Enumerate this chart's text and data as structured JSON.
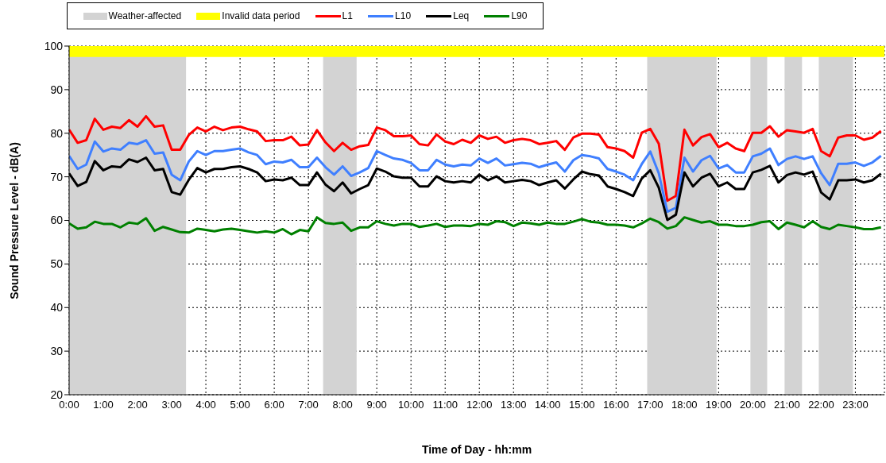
{
  "chart_data": {
    "type": "line",
    "xlabel": "Time of Day - hh:mm",
    "ylabel": "Sound Pressure Level - dB(A)",
    "x": [
      0,
      0.25,
      0.5,
      0.75,
      1,
      1.25,
      1.5,
      1.75,
      2,
      2.25,
      2.5,
      2.75,
      3,
      3.25,
      3.5,
      3.75,
      4,
      4.25,
      4.5,
      4.75,
      5,
      5.25,
      5.5,
      5.75,
      6,
      6.25,
      6.5,
      6.75,
      7,
      7.25,
      7.5,
      7.75,
      8,
      8.25,
      8.5,
      8.75,
      9,
      9.25,
      9.5,
      9.75,
      10,
      10.25,
      10.5,
      10.75,
      11,
      11.25,
      11.5,
      11.75,
      12,
      12.25,
      12.5,
      12.75,
      13,
      13.25,
      13.5,
      13.75,
      14,
      14.25,
      14.5,
      14.75,
      15,
      15.25,
      15.5,
      15.75,
      16,
      16.25,
      16.5,
      16.75,
      17,
      17.25,
      17.5,
      17.75,
      18,
      18.25,
      18.5,
      18.75,
      19,
      19.25,
      19.5,
      19.75,
      20,
      20.25,
      20.5,
      20.75,
      21,
      21.25,
      21.5,
      21.75,
      22,
      22.25,
      22.5,
      22.75,
      23,
      23.25,
      23.5,
      23.75
    ],
    "series": [
      {
        "name": "L1",
        "color": "#ff0000",
        "values": [
          80.8,
          77.8,
          78.4,
          83.3,
          80.8,
          81.5,
          81.2,
          83.0,
          81.5,
          83.9,
          81.5,
          81.8,
          76.2,
          76.2,
          79.6,
          81.3,
          80.4,
          81.5,
          80.7,
          81.3,
          81.5,
          80.9,
          80.4,
          78.2,
          78.4,
          78.4,
          79.2,
          77.2,
          77.4,
          80.7,
          77.9,
          75.9,
          77.8,
          76.2,
          77.0,
          77.3,
          81.3,
          80.7,
          79.3,
          79.3,
          79.5,
          77.5,
          77.2,
          79.7,
          78.1,
          77.5,
          78.5,
          77.8,
          79.5,
          78.7,
          79.2,
          77.8,
          78.4,
          78.7,
          78.4,
          77.5,
          77.8,
          78.2,
          76.2,
          79.0,
          79.9,
          79.9,
          79.7,
          76.8,
          76.5,
          75.9,
          74.4,
          80.1,
          81.0,
          77.6,
          64.5,
          65.6,
          80.8,
          77.2,
          79.1,
          79.8,
          76.8,
          77.8,
          76.5,
          75.9,
          80.1,
          80.1,
          81.6,
          79.2,
          80.7,
          80.4,
          80.1,
          81.0,
          75.9,
          74.7,
          79.0,
          79.5,
          79.5,
          78.5,
          79.0,
          80.5
        ]
      },
      {
        "name": "L10",
        "color": "#3f7fff",
        "values": [
          74.8,
          71.8,
          72.8,
          78.1,
          75.8,
          76.5,
          76.2,
          77.8,
          77.5,
          78.4,
          75.3,
          75.6,
          70.5,
          69.2,
          73.5,
          75.9,
          75.0,
          75.9,
          75.9,
          76.2,
          76.5,
          75.6,
          75.0,
          72.9,
          73.5,
          73.3,
          73.9,
          72.2,
          72.2,
          74.4,
          72.2,
          70.5,
          72.4,
          70.2,
          71.0,
          72.0,
          75.9,
          75.0,
          74.2,
          73.9,
          73.2,
          71.5,
          71.5,
          73.9,
          72.8,
          72.4,
          72.8,
          72.6,
          74.2,
          73.2,
          74.2,
          72.6,
          72.9,
          73.2,
          73.0,
          72.2,
          72.8,
          73.3,
          71.2,
          73.8,
          75.0,
          74.7,
          74.2,
          71.8,
          71.2,
          70.5,
          69.2,
          72.9,
          75.8,
          70.8,
          62.0,
          62.9,
          74.4,
          71.2,
          73.8,
          74.8,
          71.9,
          72.7,
          71.0,
          71.0,
          74.7,
          75.3,
          76.5,
          72.7,
          74.1,
          74.7,
          74.1,
          74.7,
          70.8,
          68.1,
          73.0,
          73.0,
          73.3,
          72.5,
          73.3,
          74.8
        ]
      },
      {
        "name": "Leq",
        "color": "#000000",
        "values": [
          70.8,
          67.9,
          68.8,
          73.6,
          71.5,
          72.4,
          72.2,
          74.0,
          73.4,
          74.4,
          71.5,
          71.8,
          66.5,
          65.9,
          69.3,
          72.0,
          71.0,
          71.8,
          71.8,
          72.2,
          72.4,
          71.8,
          71.0,
          69.0,
          69.4,
          69.2,
          69.8,
          68.1,
          68.1,
          71.0,
          68.2,
          66.7,
          68.7,
          66.2,
          67.2,
          68.1,
          71.9,
          71.2,
          70.1,
          69.8,
          69.8,
          67.8,
          67.8,
          70.1,
          69.0,
          68.7,
          69.0,
          68.7,
          70.5,
          69.2,
          70.1,
          68.7,
          69.0,
          69.3,
          69.0,
          68.1,
          68.7,
          69.2,
          67.3,
          69.4,
          71.2,
          70.6,
          70.3,
          67.8,
          67.2,
          66.5,
          65.6,
          69.6,
          71.5,
          67.5,
          60.1,
          61.3,
          71.0,
          67.8,
          69.8,
          70.7,
          67.8,
          68.7,
          67.2,
          67.2,
          71.0,
          71.6,
          72.5,
          68.7,
          70.4,
          71.0,
          70.5,
          71.2,
          66.4,
          64.8,
          69.2,
          69.2,
          69.4,
          68.7,
          69.2,
          70.7
        ]
      },
      {
        "name": "L90",
        "color": "#008000",
        "values": [
          59.3,
          58.1,
          58.4,
          59.7,
          59.2,
          59.2,
          58.4,
          59.5,
          59.2,
          60.5,
          57.6,
          58.5,
          57.9,
          57.3,
          57.2,
          58.1,
          57.8,
          57.5,
          57.9,
          58.1,
          57.8,
          57.5,
          57.2,
          57.5,
          57.2,
          58.0,
          56.8,
          57.8,
          57.5,
          60.7,
          59.4,
          59.2,
          59.5,
          57.6,
          58.4,
          58.4,
          59.8,
          59.2,
          58.8,
          59.2,
          59.2,
          58.5,
          58.8,
          59.2,
          58.5,
          58.8,
          58.8,
          58.7,
          59.2,
          59.0,
          59.8,
          59.6,
          58.7,
          59.5,
          59.3,
          59.0,
          59.5,
          59.2,
          59.2,
          59.7,
          60.3,
          59.7,
          59.5,
          59.0,
          59.0,
          58.8,
          58.4,
          59.3,
          60.4,
          59.6,
          58.1,
          58.7,
          60.7,
          60.1,
          59.5,
          59.8,
          59.0,
          59.0,
          58.7,
          58.7,
          59.0,
          59.6,
          59.8,
          58.0,
          59.5,
          59.0,
          58.4,
          59.8,
          58.5,
          58.0,
          59.0,
          58.7,
          58.4,
          58.0,
          58.0,
          58.4
        ]
      }
    ],
    "bands": [
      {
        "axis": "x",
        "from": 0,
        "to": 3.42,
        "label": "Weather-affected",
        "color": "#d3d3d3"
      },
      {
        "axis": "x",
        "from": 7.43,
        "to": 8.41,
        "color": "#d3d3d3"
      },
      {
        "axis": "x",
        "from": 16.91,
        "to": 18.94,
        "color": "#d3d3d3"
      },
      {
        "axis": "x",
        "from": 19.93,
        "to": 20.42,
        "color": "#d3d3d3"
      },
      {
        "axis": "x",
        "from": 20.93,
        "to": 21.44,
        "color": "#d3d3d3"
      },
      {
        "axis": "x",
        "from": 21.93,
        "to": 22.93,
        "color": "#d3d3d3"
      },
      {
        "axis": "y",
        "from": 97.5,
        "to": 100,
        "label": "Invalid data period",
        "color": "#ffff00"
      }
    ],
    "xlim": [
      0,
      23.85
    ],
    "xticks": [
      {
        "value": 0,
        "label": "0:00"
      },
      {
        "value": 1,
        "label": "1:00"
      },
      {
        "value": 2,
        "label": "2:00"
      },
      {
        "value": 3,
        "label": "3:00"
      },
      {
        "value": 4,
        "label": "4:00"
      },
      {
        "value": 5,
        "label": "5:00"
      },
      {
        "value": 6,
        "label": "6:00"
      },
      {
        "value": 7,
        "label": "7:00"
      },
      {
        "value": 8,
        "label": "8:00"
      },
      {
        "value": 9,
        "label": "9:00"
      },
      {
        "value": 10,
        "label": "10:00"
      },
      {
        "value": 11,
        "label": "11:00"
      },
      {
        "value": 12,
        "label": "12:00"
      },
      {
        "value": 13,
        "label": "13:00"
      },
      {
        "value": 14,
        "label": "14:00"
      },
      {
        "value": 15,
        "label": "15:00"
      },
      {
        "value": 16,
        "label": "16:00"
      },
      {
        "value": 17,
        "label": "17:00"
      },
      {
        "value": 18,
        "label": "18:00"
      },
      {
        "value": 19,
        "label": "19:00"
      },
      {
        "value": 20,
        "label": "20:00"
      },
      {
        "value": 21,
        "label": "21:00"
      },
      {
        "value": 22,
        "label": "22:00"
      },
      {
        "value": 23,
        "label": "23:00"
      }
    ],
    "ylim": [
      20,
      100
    ],
    "yticks": [
      20,
      30,
      40,
      50,
      60,
      70,
      80,
      90,
      100
    ],
    "grid": true,
    "legend": "top"
  }
}
